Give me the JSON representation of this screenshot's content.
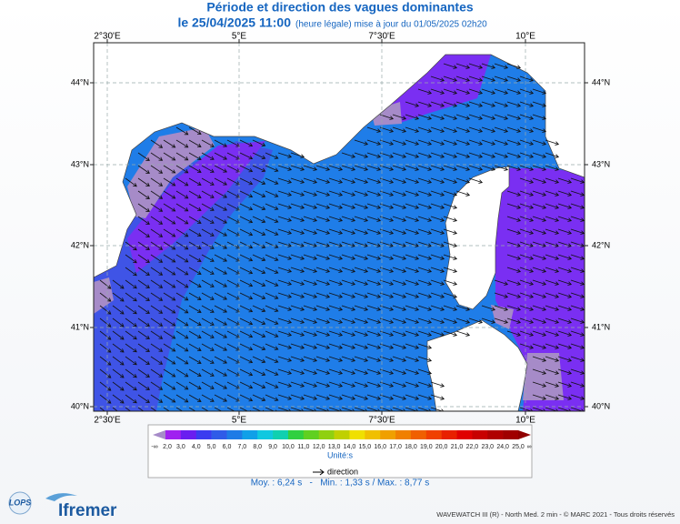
{
  "header": {
    "title": "Période et direction des vagues dominantes",
    "date": "le 25/04/2025 11:00",
    "note": "(heure légale) mise à jour du 01/05/2025 02h20"
  },
  "map": {
    "lon_labels": [
      "2°30'E",
      "5°E",
      "7°30'E",
      "10°E"
    ],
    "lat_labels": [
      "44°N",
      "43°N",
      "42°N",
      "41°N",
      "40°N"
    ]
  },
  "legend": {
    "scale_labels": [
      "-∞",
      "2,0",
      "3,0",
      "4,0",
      "5,0",
      "6,0",
      "7,0",
      "8,0",
      "9,0",
      "10,0",
      "11,0",
      "12,0",
      "13,0",
      "14,0",
      "15,0",
      "16,0",
      "17,0",
      "18,0",
      "19,0",
      "20,0",
      "21,0",
      "22,0",
      "23,0",
      "24,0",
      "25,0",
      "∞"
    ],
    "unit": "Unité:s",
    "arrow_label": "direction"
  },
  "stats": "Moy. : 6,24 s   -   Min. : 1,33 s / Max. : 8,77 s",
  "footer": {
    "credits": "WAVEWATCH III (R) - North Med. 2 min - © MARC 2021 - Tous droits réservés",
    "logo_left": "LOPS",
    "logo_right": "Ifremer"
  }
}
